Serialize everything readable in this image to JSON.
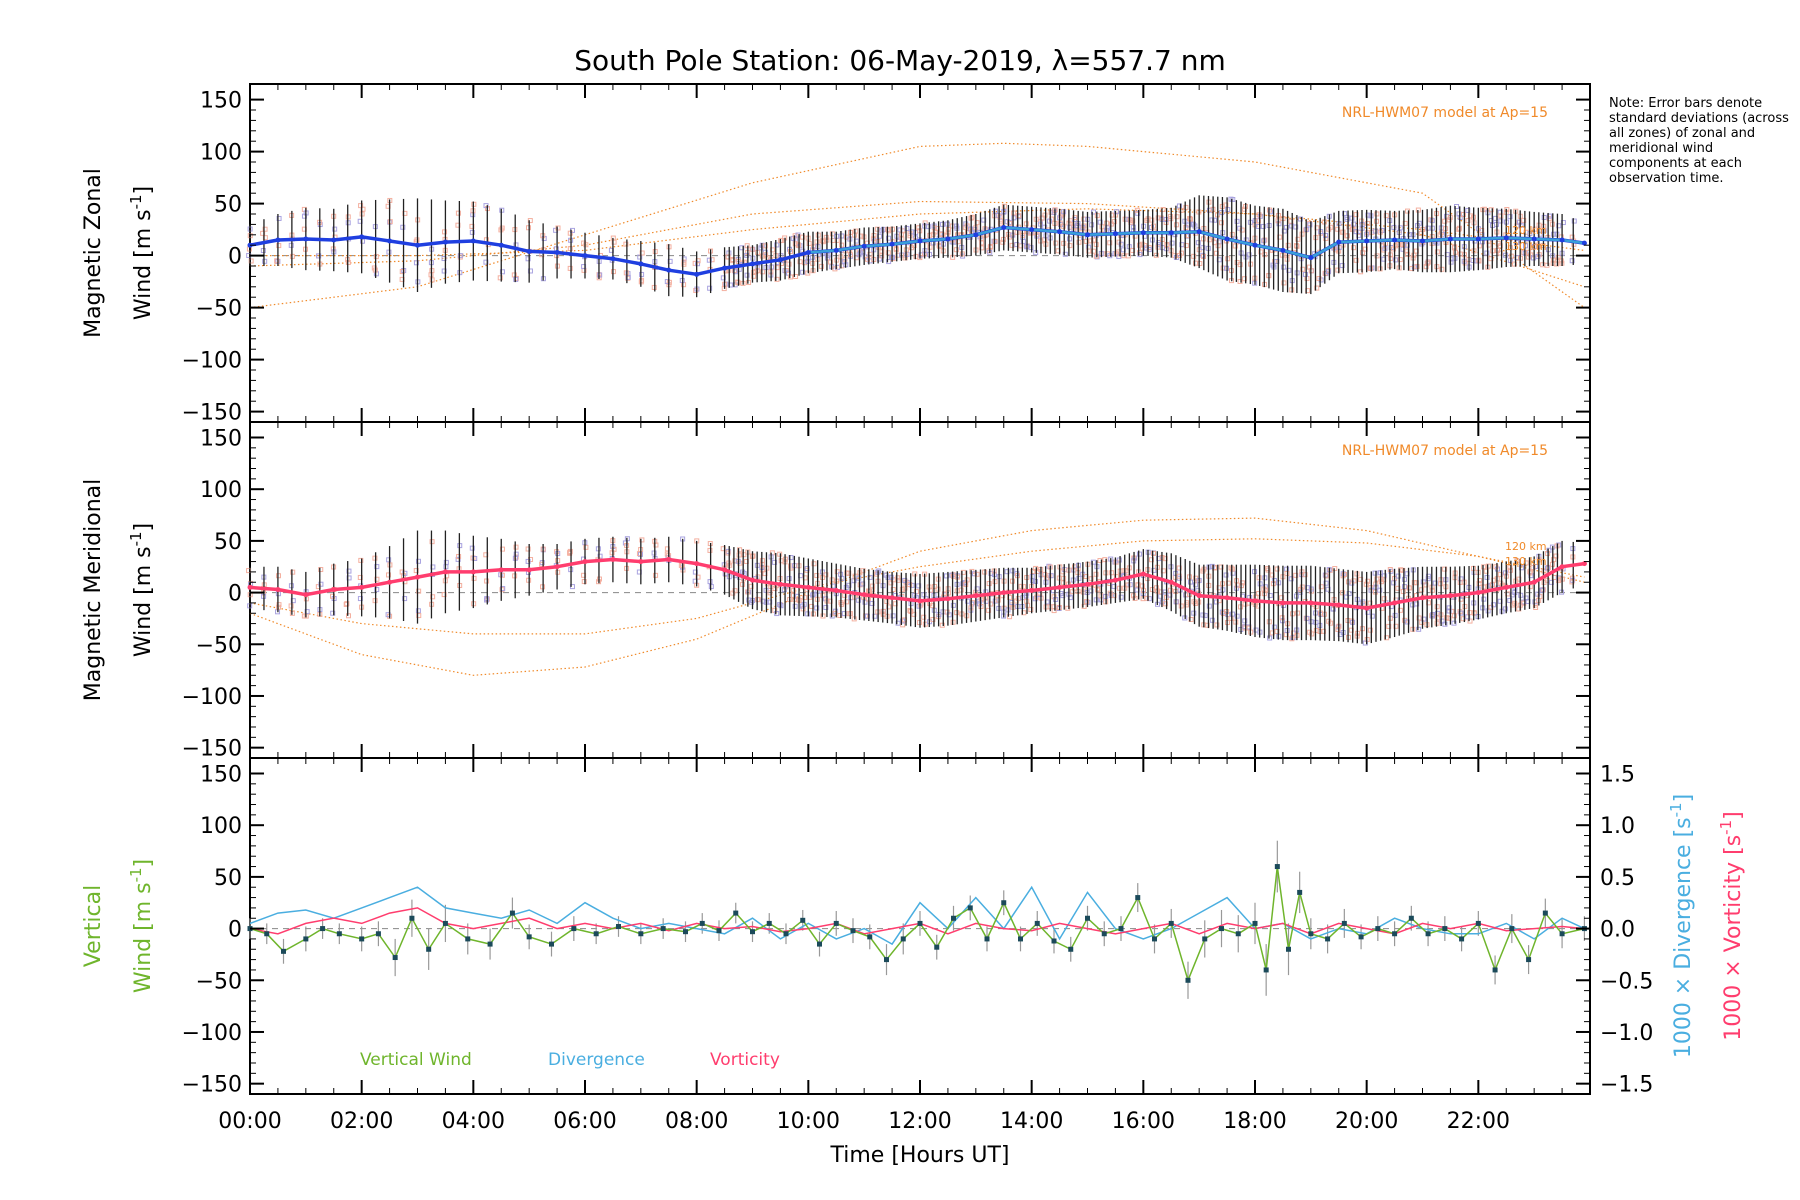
{
  "figure": {
    "title": "South Pole Station: 06-May-2019, λ=557.7 nm",
    "note": "Note: Error bars denote standard deviations (across all zones) of zonal and meridional wind components at each observation time.",
    "xlabel": "Time [Hours UT]",
    "xticks": [
      "00:00",
      "02:00",
      "04:00",
      "06:00",
      "08:00",
      "10:00",
      "12:00",
      "14:00",
      "16:00",
      "18:00",
      "20:00",
      "22:00"
    ]
  },
  "colors": {
    "zonal": "#1f3fe0",
    "zonal_light": "#3aa0d8",
    "meridional": "#ff3d6e",
    "model": "#f08a2a",
    "zone_points": "#a9a3e0",
    "zone_points_warm": "#f4b0a0",
    "vertical": "#6fb52c",
    "divergence": "#4aaee0",
    "vorticity": "#ff3d6e",
    "errorbar": "#222222"
  },
  "chart_data": [
    {
      "type": "line",
      "panel": "zonal",
      "ylabel_line1": "Magnetic Zonal",
      "ylabel_line2": "Wind [m s",
      "ylabel_exp": "-1",
      "ylabel_close": "]",
      "ylim": [
        -160,
        165
      ],
      "yticks": [
        150,
        100,
        50,
        0,
        -50,
        -100,
        -150
      ],
      "model_label": "NRL-HWM07 model at Ap=15",
      "model_heights": [
        "120 km",
        "130 km"
      ],
      "series": [
        {
          "name": "Zonal wind",
          "x": [
            0,
            0.5,
            1,
            1.5,
            2,
            2.5,
            3,
            3.5,
            4,
            4.5,
            5,
            5.5,
            6,
            6.5,
            7,
            7.5,
            8,
            8.5,
            9,
            9.5,
            10,
            10.5,
            11,
            11.5,
            12,
            12.5,
            13,
            13.5,
            14,
            14.5,
            15,
            15.5,
            16,
            16.5,
            17,
            17.5,
            18,
            18.5,
            19,
            19.5,
            20,
            20.5,
            21,
            21.5,
            22,
            22.5,
            23,
            23.5,
            23.9
          ],
          "y": [
            10,
            15,
            16,
            15,
            18,
            14,
            10,
            13,
            14,
            10,
            4,
            3,
            0,
            -3,
            -8,
            -14,
            -18,
            -12,
            -8,
            -4,
            3,
            5,
            9,
            11,
            14,
            16,
            20,
            27,
            25,
            23,
            20,
            21,
            22,
            22,
            23,
            16,
            10,
            5,
            -2,
            13,
            14,
            15,
            14,
            16,
            16,
            17,
            16,
            15,
            12
          ],
          "err": [
            20,
            25,
            30,
            30,
            35,
            40,
            45,
            40,
            38,
            35,
            30,
            25,
            22,
            20,
            22,
            25,
            22,
            20,
            18,
            20,
            20,
            18,
            18,
            17,
            17,
            18,
            20,
            22,
            22,
            22,
            22,
            22,
            22,
            24,
            35,
            40,
            38,
            40,
            35,
            30,
            30,
            28,
            30,
            32,
            30,
            28,
            26,
            25,
            20
          ]
        },
        {
          "name": "HWM07 120 km",
          "x": [
            0,
            3,
            6,
            9,
            12,
            13.5,
            15,
            18,
            21,
            23.9
          ],
          "y": [
            -50,
            -30,
            20,
            70,
            105,
            108,
            105,
            90,
            60,
            -50
          ]
        },
        {
          "name": "HWM07 130 km",
          "x": [
            0,
            3,
            6,
            9,
            12,
            15,
            18,
            21,
            23.9
          ],
          "y": [
            -10,
            -5,
            10,
            40,
            52,
            50,
            40,
            20,
            -30
          ]
        },
        {
          "name": "HWM07 mean",
          "x": [
            0,
            3,
            6,
            9,
            12,
            15,
            18,
            21,
            23.9
          ],
          "y": [
            0,
            0,
            5,
            25,
            40,
            45,
            40,
            25,
            5
          ]
        }
      ]
    },
    {
      "type": "line",
      "panel": "meridional",
      "ylabel_line1": "Magnetic Meridional",
      "ylabel_line2": "Wind [m s",
      "ylabel_exp": "-1",
      "ylabel_close": "]",
      "ylim": [
        -160,
        165
      ],
      "yticks": [
        150,
        100,
        50,
        0,
        -50,
        -100,
        -150
      ],
      "model_label": "NRL-HWM07 model at Ap=15",
      "model_heights": [
        "120 km",
        "130 km"
      ],
      "series": [
        {
          "name": "Meridional wind",
          "x": [
            0,
            0.5,
            1,
            1.5,
            2,
            2.5,
            3,
            3.5,
            4,
            4.5,
            5,
            5.5,
            6,
            6.5,
            7,
            7.5,
            8,
            8.5,
            9,
            9.5,
            10,
            10.5,
            11,
            11.5,
            12,
            12.5,
            13,
            13.5,
            14,
            14.5,
            15,
            15.5,
            16,
            16.5,
            17,
            17.5,
            18,
            18.5,
            19,
            19.5,
            20,
            20.5,
            21,
            21.5,
            22,
            22.5,
            23,
            23.5,
            23.9
          ],
          "y": [
            5,
            3,
            -2,
            3,
            5,
            10,
            15,
            20,
            20,
            22,
            22,
            25,
            30,
            32,
            30,
            32,
            28,
            22,
            12,
            8,
            5,
            2,
            -2,
            -5,
            -8,
            -6,
            -3,
            0,
            2,
            5,
            8,
            12,
            18,
            10,
            -3,
            -5,
            -8,
            -10,
            -10,
            -12,
            -15,
            -10,
            -5,
            -3,
            0,
            5,
            10,
            25,
            28
          ],
          "err": [
            20,
            22,
            22,
            25,
            28,
            35,
            45,
            40,
            35,
            30,
            25,
            22,
            22,
            22,
            22,
            22,
            22,
            24,
            28,
            30,
            28,
            26,
            25,
            25,
            26,
            26,
            25,
            24,
            22,
            22,
            22,
            22,
            24,
            28,
            30,
            32,
            35,
            36,
            36,
            35,
            35,
            33,
            30,
            28,
            26,
            25,
            25,
            25,
            20
          ]
        },
        {
          "name": "HWM07 120 km",
          "x": [
            0,
            2,
            4,
            6,
            8,
            10,
            12,
            14,
            16,
            18,
            20,
            22,
            23.9
          ],
          "y": [
            -20,
            -60,
            -80,
            -72,
            -45,
            0,
            40,
            60,
            70,
            72,
            60,
            35,
            10
          ]
        },
        {
          "name": "HWM07 130 km",
          "x": [
            0,
            2,
            4,
            6,
            8,
            10,
            12,
            14,
            16,
            18,
            20,
            22,
            23.9
          ],
          "y": [
            -10,
            -30,
            -40,
            -40,
            -25,
            5,
            25,
            40,
            50,
            52,
            48,
            35,
            15
          ]
        }
      ]
    },
    {
      "type": "line",
      "panel": "vertical",
      "ylabel_line1": "Vertical",
      "ylabel_line2": "Wind [m s",
      "ylabel_exp": "-1",
      "ylabel_close": "]",
      "ylim": [
        -160,
        165
      ],
      "yticks": [
        150,
        100,
        50,
        0,
        -50,
        -100,
        -150
      ],
      "y2label_div": "1000 × Divergence [s",
      "y2label_vort": "1000 × Vorticity [s",
      "y2label_exp": "-1",
      "y2label_close": "]",
      "y2lim": [
        -1.6,
        1.65
      ],
      "y2ticks": [
        "1.5",
        "1.0",
        "0.5",
        "0.0",
        "−0.5",
        "−1.0",
        "−1.5"
      ],
      "y2tick_values": [
        1.5,
        1.0,
        0.5,
        0.0,
        -0.5,
        -1.0,
        -1.5
      ],
      "legend": [
        "Vertical Wind",
        "Divergence",
        "Vorticity"
      ],
      "series": [
        {
          "name": "Vertical Wind",
          "x": [
            0,
            0.3,
            0.6,
            1,
            1.3,
            1.6,
            2,
            2.3,
            2.6,
            2.9,
            3.2,
            3.5,
            3.9,
            4.3,
            4.7,
            5,
            5.4,
            5.8,
            6.2,
            6.6,
            7,
            7.4,
            7.8,
            8.1,
            8.4,
            8.7,
            9,
            9.3,
            9.6,
            9.9,
            10.2,
            10.5,
            10.8,
            11.1,
            11.4,
            11.7,
            12,
            12.3,
            12.6,
            12.9,
            13.2,
            13.5,
            13.8,
            14.1,
            14.4,
            14.7,
            15,
            15.3,
            15.6,
            15.9,
            16.2,
            16.5,
            16.8,
            17.1,
            17.4,
            17.7,
            18,
            18.2,
            18.4,
            18.6,
            18.8,
            19,
            19.3,
            19.6,
            19.9,
            20.2,
            20.5,
            20.8,
            21.1,
            21.4,
            21.7,
            22,
            22.3,
            22.6,
            22.9,
            23.2,
            23.5,
            23.9
          ],
          "y": [
            0,
            -5,
            -22,
            -10,
            0,
            -5,
            -10,
            -5,
            -28,
            10,
            -20,
            5,
            -10,
            -15,
            15,
            -8,
            -15,
            0,
            -5,
            2,
            -5,
            0,
            -3,
            5,
            -2,
            15,
            -3,
            5,
            -5,
            8,
            -15,
            5,
            -2,
            -8,
            -30,
            -10,
            5,
            -18,
            10,
            20,
            -10,
            25,
            -10,
            5,
            -12,
            -20,
            10,
            -5,
            0,
            30,
            -10,
            5,
            -50,
            -10,
            0,
            -5,
            5,
            -40,
            60,
            -20,
            35,
            -5,
            -10,
            5,
            -8,
            0,
            -5,
            10,
            -5,
            0,
            -10,
            5,
            -40,
            0,
            -30,
            15,
            -5,
            0
          ],
          "err": [
            10,
            10,
            12,
            12,
            10,
            10,
            12,
            12,
            18,
            18,
            20,
            18,
            15,
            15,
            15,
            12,
            12,
            12,
            10,
            10,
            10,
            10,
            10,
            10,
            10,
            10,
            10,
            10,
            10,
            10,
            12,
            12,
            12,
            12,
            15,
            15,
            12,
            12,
            12,
            12,
            12,
            12,
            12,
            12,
            12,
            12,
            12,
            12,
            12,
            14,
            14,
            14,
            18,
            18,
            18,
            18,
            20,
            25,
            25,
            25,
            20,
            15,
            14,
            14,
            12,
            12,
            12,
            12,
            12,
            12,
            12,
            12,
            14,
            14,
            14,
            14,
            14,
            12
          ]
        },
        {
          "name": "Divergence",
          "x": [
            0,
            0.5,
            1,
            1.5,
            2,
            2.5,
            3,
            3.5,
            4,
            4.5,
            5,
            5.5,
            6,
            6.5,
            7,
            7.5,
            8,
            8.5,
            9,
            9.5,
            10,
            10.5,
            11,
            11.5,
            12,
            12.5,
            13,
            13.5,
            14,
            14.5,
            15,
            15.5,
            16,
            16.5,
            17,
            17.5,
            18,
            18.5,
            19,
            19.5,
            20,
            20.5,
            21,
            21.5,
            22,
            22.5,
            23,
            23.5,
            23.9
          ],
          "y": [
            0.05,
            0.15,
            0.18,
            0.1,
            0.2,
            0.3,
            0.4,
            0.2,
            0.15,
            0.1,
            0.18,
            0.05,
            0.25,
            0.1,
            0.0,
            0.05,
            0.0,
            -0.05,
            0.1,
            -0.1,
            0.05,
            -0.1,
            0.0,
            -0.15,
            0.25,
            0.0,
            0.3,
            0.0,
            0.4,
            -0.1,
            0.35,
            0.0,
            -0.1,
            0.0,
            0.15,
            0.3,
            0.0,
            0.05,
            -0.1,
            0.0,
            -0.05,
            0.1,
            0.0,
            -0.05,
            -0.05,
            0.05,
            -0.1,
            0.1,
            0.0
          ]
        },
        {
          "name": "Vorticity",
          "x": [
            0,
            0.5,
            1,
            1.5,
            2,
            2.5,
            3,
            3.5,
            4,
            4.5,
            5,
            5.5,
            6,
            6.5,
            7,
            7.5,
            8,
            8.5,
            9,
            9.5,
            10,
            10.5,
            11,
            11.5,
            12,
            12.5,
            13,
            13.5,
            14,
            14.5,
            15,
            15.5,
            16,
            16.5,
            17,
            17.5,
            18,
            18.5,
            19,
            19.5,
            20,
            20.5,
            21,
            21.5,
            22,
            22.5,
            23,
            23.5,
            23.9
          ],
          "y": [
            0.0,
            -0.05,
            0.05,
            0.1,
            0.05,
            0.15,
            0.2,
            0.05,
            0.0,
            0.05,
            0.1,
            0.0,
            0.05,
            0.0,
            0.05,
            -0.02,
            0.05,
            0.0,
            0.02,
            -0.03,
            0.0,
            0.05,
            -0.05,
            0.0,
            0.05,
            -0.05,
            0.05,
            0.0,
            -0.02,
            0.05,
            0.0,
            -0.05,
            0.0,
            0.05,
            -0.05,
            0.05,
            0.0,
            0.05,
            -0.05,
            0.05,
            0.0,
            -0.05,
            0.05,
            0.0,
            0.05,
            -0.02,
            0.0,
            0.02,
            0.0
          ]
        }
      ]
    }
  ]
}
